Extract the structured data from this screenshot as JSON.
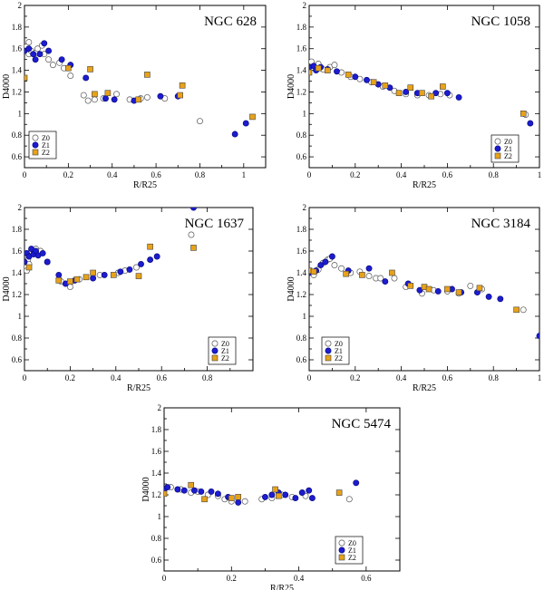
{
  "figure": {
    "marker_colors": {
      "Z0": "#ffffff",
      "Z1": "#1c1cd0",
      "Z2": "#e8a21a"
    },
    "marker_stroke": "#444444"
  },
  "chart_data": [
    {
      "type": "scatter",
      "title": "NGC 628",
      "xlabel": "R/R25",
      "ylabel": "D4000",
      "xlim": [
        0,
        1.1
      ],
      "ylim": [
        0.5,
        2.0
      ],
      "xticks": [
        "0",
        "0.2",
        "0.4",
        "0.6",
        "0.8",
        "1"
      ],
      "yticks": [
        "0.6",
        "0.8",
        "1",
        "1.2",
        "1.4",
        "1.6",
        "1.8",
        "2"
      ],
      "grid": false,
      "legend": {
        "position": "bottom-left",
        "entries": [
          "Z0",
          "Z1",
          "Z2"
        ]
      },
      "series": [
        {
          "name": "Z0",
          "marker": "circle-open",
          "x": [
            0.0,
            0.01,
            0.02,
            0.02,
            0.03,
            0.05,
            0.06,
            0.08,
            0.09,
            0.11,
            0.13,
            0.16,
            0.18,
            0.21,
            0.27,
            0.29,
            0.32,
            0.36,
            0.42,
            0.48,
            0.53,
            0.56,
            0.64,
            0.8
          ],
          "y": [
            1.6,
            1.62,
            1.66,
            1.55,
            1.58,
            1.56,
            1.6,
            1.63,
            1.55,
            1.5,
            1.45,
            1.47,
            1.42,
            1.35,
            1.17,
            1.12,
            1.13,
            1.14,
            1.18,
            1.13,
            1.14,
            1.15,
            1.14,
            0.93
          ]
        },
        {
          "name": "Z1",
          "marker": "circle-filled",
          "x": [
            0.0,
            0.02,
            0.04,
            0.05,
            0.07,
            0.09,
            0.11,
            0.17,
            0.21,
            0.28,
            0.37,
            0.41,
            0.5,
            0.62,
            0.7,
            0.96,
            1.01
          ],
          "y": [
            1.58,
            1.6,
            1.55,
            1.5,
            1.55,
            1.65,
            1.58,
            1.5,
            1.45,
            1.33,
            1.14,
            1.13,
            1.12,
            1.16,
            1.16,
            0.81,
            0.91
          ]
        },
        {
          "name": "Z2",
          "marker": "square-filled",
          "x": [
            0.0,
            0.2,
            0.3,
            0.32,
            0.38,
            0.52,
            0.56,
            0.71,
            0.72,
            1.04
          ],
          "y": [
            1.33,
            1.42,
            1.41,
            1.18,
            1.19,
            1.13,
            1.36,
            1.17,
            1.26,
            0.97
          ]
        }
      ]
    },
    {
      "type": "scatter",
      "title": "NGC 1058",
      "xlabel": "R/R25",
      "ylabel": "D4000",
      "xlim": [
        0,
        1.0
      ],
      "ylim": [
        0.5,
        2.0
      ],
      "xticks": [
        "0",
        "0.2",
        "0.4",
        "0.6",
        "0.8",
        "1"
      ],
      "yticks": [
        "0.6",
        "0.8",
        "1",
        "1.2",
        "1.4",
        "1.6",
        "1.8",
        "2"
      ],
      "grid": false,
      "legend": {
        "position": "bottom-right",
        "entries": [
          "Z0",
          "Z1",
          "Z2"
        ]
      },
      "series": [
        {
          "name": "Z0",
          "marker": "circle-open",
          "x": [
            0.0,
            0.01,
            0.02,
            0.04,
            0.06,
            0.09,
            0.11,
            0.14,
            0.18,
            0.22,
            0.27,
            0.32,
            0.37,
            0.42,
            0.47,
            0.52,
            0.57,
            0.61,
            0.94
          ],
          "y": [
            1.46,
            1.48,
            1.44,
            1.46,
            1.41,
            1.43,
            1.45,
            1.38,
            1.34,
            1.32,
            1.29,
            1.25,
            1.21,
            1.18,
            1.17,
            1.17,
            1.18,
            1.17,
            0.99
          ]
        },
        {
          "name": "Z1",
          "marker": "circle-filled",
          "x": [
            0.0,
            0.02,
            0.03,
            0.05,
            0.08,
            0.12,
            0.2,
            0.25,
            0.3,
            0.35,
            0.42,
            0.47,
            0.55,
            0.6,
            0.65,
            0.96
          ],
          "y": [
            1.43,
            1.44,
            1.4,
            1.43,
            1.41,
            1.39,
            1.34,
            1.31,
            1.27,
            1.24,
            1.2,
            1.19,
            1.19,
            1.19,
            1.15,
            0.91
          ]
        },
        {
          "name": "Z2",
          "marker": "square-filled",
          "x": [
            0.0,
            0.04,
            0.08,
            0.17,
            0.28,
            0.33,
            0.39,
            0.44,
            0.49,
            0.53,
            0.58,
            0.93
          ],
          "y": [
            1.38,
            1.42,
            1.4,
            1.36,
            1.29,
            1.26,
            1.19,
            1.24,
            1.19,
            1.16,
            1.25,
            1.0
          ]
        }
      ]
    },
    {
      "type": "scatter",
      "title": "NGC 1637",
      "xlabel": "R/R25",
      "ylabel": "D4000",
      "xlim": [
        0,
        1.0
      ],
      "ylim": [
        0.5,
        2.0
      ],
      "xticks": [
        "0",
        "0.2",
        "0.4",
        "0.6",
        "0.8"
      ],
      "yticks": [
        "0.6",
        "0.8",
        "1",
        "1.2",
        "1.4",
        "1.6",
        "1.8",
        "2"
      ],
      "grid": false,
      "legend": {
        "position": "bottom-right",
        "entries": [
          "Z0",
          "Z1",
          "Z2"
        ]
      },
      "series": [
        {
          "name": "Z0",
          "marker": "circle-open",
          "x": [
            0.0,
            0.005,
            0.01,
            0.015,
            0.02,
            0.02,
            0.03,
            0.04,
            0.05,
            0.07,
            0.1,
            0.16,
            0.2,
            0.24,
            0.33,
            0.41,
            0.44,
            0.49,
            0.73
          ],
          "y": [
            1.45,
            1.5,
            1.42,
            1.52,
            1.56,
            1.48,
            1.6,
            1.58,
            1.62,
            1.6,
            1.5,
            1.32,
            1.27,
            1.34,
            1.38,
            1.4,
            1.42,
            1.45,
            1.75
          ]
        },
        {
          "name": "Z1",
          "marker": "circle-filled",
          "x": [
            0.0,
            0.01,
            0.02,
            0.03,
            0.04,
            0.05,
            0.06,
            0.08,
            0.1,
            0.15,
            0.18,
            0.22,
            0.3,
            0.35,
            0.42,
            0.46,
            0.51,
            0.55,
            0.58,
            0.74
          ],
          "y": [
            1.5,
            1.58,
            1.55,
            1.62,
            1.57,
            1.6,
            1.56,
            1.58,
            1.5,
            1.38,
            1.3,
            1.33,
            1.35,
            1.38,
            1.41,
            1.43,
            1.48,
            1.52,
            1.55,
            2.0
          ]
        },
        {
          "name": "Z2",
          "marker": "square-filled",
          "x": [
            0.02,
            0.15,
            0.2,
            0.23,
            0.27,
            0.3,
            0.39,
            0.5,
            0.55,
            0.74
          ],
          "y": [
            1.45,
            1.33,
            1.32,
            1.34,
            1.36,
            1.4,
            1.38,
            1.37,
            1.64,
            1.63
          ]
        }
      ]
    },
    {
      "type": "scatter",
      "title": "NGC 3184",
      "xlabel": "R/R25",
      "ylabel": "D4000",
      "xlim": [
        0,
        1.0
      ],
      "ylim": [
        0.5,
        2.0
      ],
      "xticks": [
        "0",
        "0.2",
        "0.4",
        "0.6",
        "0.8",
        "1"
      ],
      "yticks": [
        "0.6",
        "0.8",
        "1",
        "1.2",
        "1.4",
        "1.6",
        "1.8",
        "2"
      ],
      "grid": false,
      "legend": {
        "position": "bottom-left",
        "entries": [
          "Z0",
          "Z1",
          "Z2"
        ]
      },
      "series": [
        {
          "name": "Z0",
          "marker": "circle-open",
          "x": [
            0.0,
            0.02,
            0.04,
            0.06,
            0.08,
            0.09,
            0.11,
            0.14,
            0.18,
            0.22,
            0.26,
            0.29,
            0.31,
            0.37,
            0.42,
            0.49,
            0.54,
            0.6,
            0.65,
            0.7,
            0.75,
            0.93
          ],
          "y": [
            1.42,
            1.38,
            1.43,
            1.49,
            1.52,
            1.53,
            1.47,
            1.44,
            1.4,
            1.41,
            1.37,
            1.35,
            1.35,
            1.35,
            1.27,
            1.21,
            1.24,
            1.23,
            1.21,
            1.28,
            1.25,
            1.06
          ]
        },
        {
          "name": "Z1",
          "marker": "circle-filled",
          "x": [
            0.0,
            0.03,
            0.05,
            0.07,
            0.1,
            0.17,
            0.26,
            0.33,
            0.43,
            0.48,
            0.56,
            0.62,
            0.66,
            0.73,
            0.78,
            0.83,
            1.0
          ],
          "y": [
            1.4,
            1.42,
            1.47,
            1.5,
            1.55,
            1.42,
            1.44,
            1.32,
            1.3,
            1.24,
            1.23,
            1.25,
            1.22,
            1.22,
            1.18,
            1.16,
            0.82
          ]
        },
        {
          "name": "Z2",
          "marker": "square-filled",
          "x": [
            0.0,
            0.02,
            0.16,
            0.23,
            0.36,
            0.44,
            0.5,
            0.52,
            0.6,
            0.65,
            0.74,
            0.9
          ],
          "y": [
            1.42,
            1.41,
            1.39,
            1.38,
            1.4,
            1.28,
            1.27,
            1.25,
            1.25,
            1.22,
            1.26,
            1.06
          ]
        }
      ]
    },
    {
      "type": "scatter",
      "title": "NGC 5474",
      "xlabel": "R/R25",
      "ylabel": "D4000",
      "xlim": [
        0,
        0.7
      ],
      "ylim": [
        0.5,
        2.0
      ],
      "xticks": [
        "0",
        "0.2",
        "0.4",
        "0.6"
      ],
      "yticks": [
        "0.6",
        "0.8",
        "1",
        "1.2",
        "1.4",
        "1.6",
        "1.8",
        "2"
      ],
      "grid": false,
      "legend": {
        "position": "bottom-right",
        "entries": [
          "Z0",
          "Z1",
          "Z2"
        ]
      },
      "series": [
        {
          "name": "Z0",
          "marker": "circle-open",
          "x": [
            0.0,
            0.02,
            0.05,
            0.08,
            0.1,
            0.13,
            0.16,
            0.18,
            0.2,
            0.24,
            0.29,
            0.32,
            0.35,
            0.38,
            0.41,
            0.42,
            0.55
          ],
          "y": [
            1.24,
            1.27,
            1.25,
            1.22,
            1.23,
            1.2,
            1.19,
            1.16,
            1.14,
            1.14,
            1.16,
            1.17,
            1.2,
            1.18,
            1.22,
            1.19,
            1.16
          ]
        },
        {
          "name": "Z1",
          "marker": "circle-filled",
          "x": [
            0.0,
            0.01,
            0.04,
            0.06,
            0.09,
            0.11,
            0.14,
            0.16,
            0.19,
            0.22,
            0.3,
            0.32,
            0.34,
            0.36,
            0.39,
            0.41,
            0.43,
            0.44,
            0.57
          ],
          "y": [
            1.25,
            1.27,
            1.25,
            1.24,
            1.24,
            1.23,
            1.23,
            1.21,
            1.18,
            1.13,
            1.18,
            1.2,
            1.22,
            1.2,
            1.17,
            1.22,
            1.24,
            1.17,
            1.31
          ]
        },
        {
          "name": "Z2",
          "marker": "square-filled",
          "x": [
            0.0,
            0.08,
            0.12,
            0.2,
            0.22,
            0.33,
            0.34,
            0.52
          ],
          "y": [
            1.21,
            1.29,
            1.16,
            1.17,
            1.18,
            1.25,
            1.19,
            1.22
          ]
        }
      ]
    }
  ]
}
